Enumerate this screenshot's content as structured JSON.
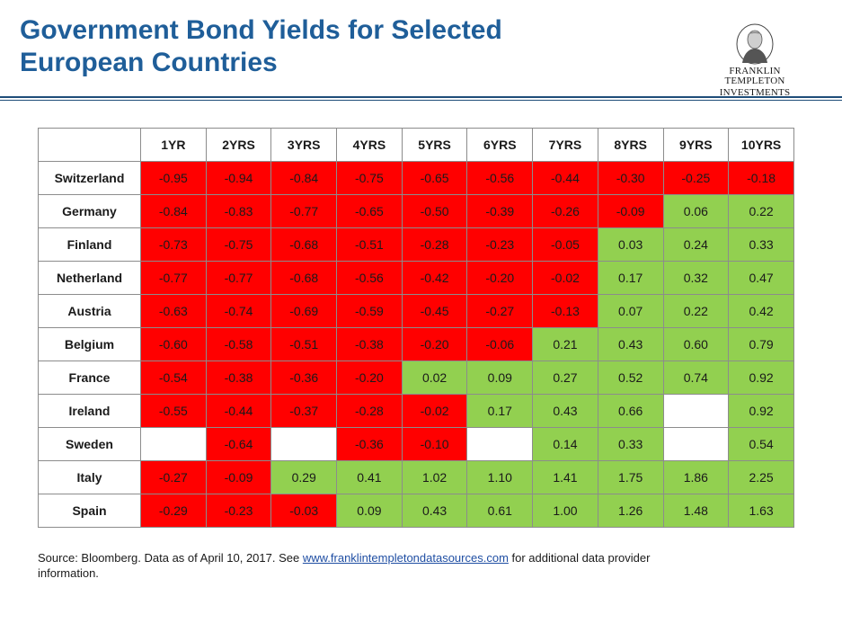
{
  "header": {
    "title_line1": "Government Bond Yields for Selected",
    "title_line2": "European Countries",
    "logo_line1": "FRANKLIN TEMPLETON",
    "logo_line2": "INVESTMENTS"
  },
  "chart_data": {
    "type": "table",
    "columns": [
      "1YR",
      "2YRS",
      "3YRS",
      "4YRS",
      "5YRS",
      "6YRS",
      "7YRS",
      "8YRS",
      "9YRS",
      "10YRS"
    ],
    "rows": [
      {
        "country": "Switzerland",
        "values": [
          "-0.95",
          "-0.94",
          "-0.84",
          "-0.75",
          "-0.65",
          "-0.56",
          "-0.44",
          "-0.30",
          "-0.25",
          "-0.18"
        ]
      },
      {
        "country": "Germany",
        "values": [
          "-0.84",
          "-0.83",
          "-0.77",
          "-0.65",
          "-0.50",
          "-0.39",
          "-0.26",
          "-0.09",
          "0.06",
          "0.22"
        ]
      },
      {
        "country": "Finland",
        "values": [
          "-0.73",
          "-0.75",
          "-0.68",
          "-0.51",
          "-0.28",
          "-0.23",
          "-0.05",
          "0.03",
          "0.24",
          "0.33"
        ]
      },
      {
        "country": "Netherland",
        "values": [
          "-0.77",
          "-0.77",
          "-0.68",
          "-0.56",
          "-0.42",
          "-0.20",
          "-0.02",
          "0.17",
          "0.32",
          "0.47"
        ]
      },
      {
        "country": "Austria",
        "values": [
          "-0.63",
          "-0.74",
          "-0.69",
          "-0.59",
          "-0.45",
          "-0.27",
          "-0.13",
          "0.07",
          "0.22",
          "0.42"
        ]
      },
      {
        "country": "Belgium",
        "values": [
          "-0.60",
          "-0.58",
          "-0.51",
          "-0.38",
          "-0.20",
          "-0.06",
          "0.21",
          "0.43",
          "0.60",
          "0.79"
        ]
      },
      {
        "country": "France",
        "values": [
          "-0.54",
          "-0.38",
          "-0.36",
          "-0.20",
          "0.02",
          "0.09",
          "0.27",
          "0.52",
          "0.74",
          "0.92"
        ]
      },
      {
        "country": "Ireland",
        "values": [
          "-0.55",
          "-0.44",
          "-0.37",
          "-0.28",
          "-0.02",
          "0.17",
          "0.43",
          "0.66",
          null,
          "0.92"
        ]
      },
      {
        "country": "Sweden",
        "values": [
          null,
          "-0.64",
          null,
          "-0.36",
          "-0.10",
          null,
          "0.14",
          "0.33",
          null,
          "0.54"
        ]
      },
      {
        "country": "Italy",
        "values": [
          "-0.27",
          "-0.09",
          "0.29",
          "0.41",
          "1.02",
          "1.10",
          "1.41",
          "1.75",
          "1.86",
          "2.25"
        ]
      },
      {
        "country": "Spain",
        "values": [
          "-0.29",
          "-0.23",
          "-0.03",
          "0.09",
          "0.43",
          "0.61",
          "1.00",
          "1.26",
          "1.48",
          "1.63"
        ]
      }
    ],
    "colors": {
      "negative": "#ff0000",
      "positive": "#92d050",
      "missing": "#ffffff"
    }
  },
  "footer": {
    "source_before": "Source: Bloomberg. Data as of April 10, 2017. See ",
    "source_link": "www.franklintempletondatasources.com",
    "source_after": " for additional data provider information."
  }
}
